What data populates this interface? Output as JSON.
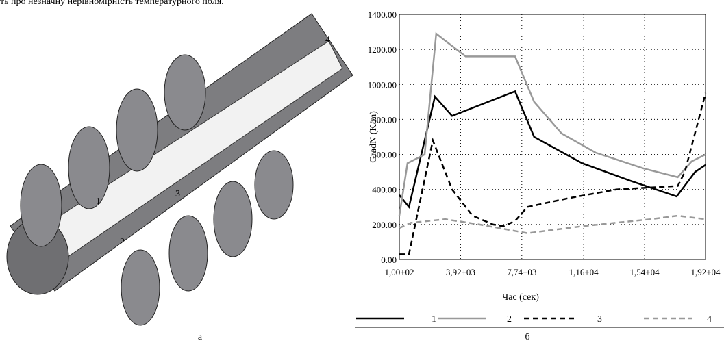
{
  "caption_top": "ть про незначну нерівномірність температурного поля.",
  "figure": {
    "part_labels": [
      "а",
      "б"
    ],
    "callouts": [
      "1",
      "2",
      "3",
      "4"
    ]
  },
  "chart_data": {
    "type": "line",
    "xlabel": "Час (сек)",
    "ylabel": "GradN (K/m)",
    "xlim": [
      100,
      19200
    ],
    "ylim": [
      0,
      1400
    ],
    "xticks": [
      {
        "value": 100,
        "label": "1,00+02"
      },
      {
        "value": 3920,
        "label": "3,92+03"
      },
      {
        "value": 7740,
        "label": "7,74+03"
      },
      {
        "value": 11600,
        "label": "1,16+04"
      },
      {
        "value": 15400,
        "label": "1,54+04"
      },
      {
        "value": 19200,
        "label": "1,92+04"
      }
    ],
    "yticks": [
      {
        "value": 0,
        "label": "0.00"
      },
      {
        "value": 200,
        "label": "200.00"
      },
      {
        "value": 400,
        "label": "400.00"
      },
      {
        "value": 600,
        "label": "600.00"
      },
      {
        "value": 800,
        "label": "800.00"
      },
      {
        "value": 1000,
        "label": "1000.00"
      },
      {
        "value": 1200,
        "label": "1200.00"
      },
      {
        "value": 1400,
        "label": "1400.00"
      }
    ],
    "grid": true,
    "series": [
      {
        "name": "1",
        "color": "#000000",
        "dash": false,
        "x": [
          100,
          700,
          2320,
          3390,
          7320,
          8510,
          11500,
          14500,
          17400,
          18550,
          19200
        ],
        "values": [
          368,
          300,
          930,
          820,
          960,
          700,
          550,
          450,
          360,
          500,
          540
        ]
      },
      {
        "name": "2",
        "color": "#999999",
        "dash": false,
        "x": [
          100,
          610,
          1680,
          2400,
          2960,
          4240,
          7320,
          8510,
          10220,
          12350,
          15340,
          17470,
          18330,
          19200
        ],
        "values": [
          250,
          550,
          600,
          1290,
          1250,
          1160,
          1160,
          900,
          720,
          610,
          520,
          470,
          560,
          600
        ]
      },
      {
        "name": "3",
        "color": "#000000",
        "dash": true,
        "x": [
          100,
          700,
          2190,
          3390,
          4670,
          5950,
          6600,
          7320,
          8090,
          10650,
          13640,
          17470,
          17910,
          19200
        ],
        "values": [
          30,
          30,
          680,
          400,
          250,
          200,
          190,
          220,
          300,
          350,
          400,
          420,
          500,
          950
        ]
      },
      {
        "name": "4",
        "color": "#999999",
        "dash": true,
        "x": [
          100,
          830,
          2960,
          5100,
          8090,
          11500,
          15760,
          17470,
          19200
        ],
        "values": [
          180,
          210,
          230,
          200,
          150,
          190,
          230,
          250,
          230
        ]
      }
    ]
  }
}
